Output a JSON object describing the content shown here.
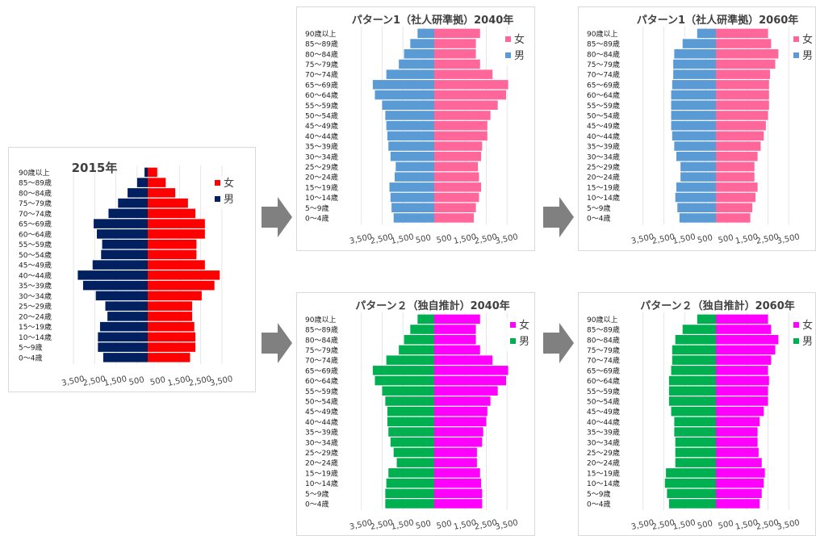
{
  "age_labels": [
    "0〜4歳",
    "5〜9歳",
    "10〜14歳",
    "15〜19歳",
    "20〜24歳",
    "25〜29歳",
    "30〜34歳",
    "35〜39歳",
    "40〜44歳",
    "45〜49歳",
    "50〜54歳",
    "55〜59歳",
    "60〜64歳",
    "65〜69歳",
    "70〜74歳",
    "75〜79歳",
    "80〜84歳",
    "85〜89歳",
    "90歳以上"
  ],
  "x_ticks": [
    "3,500",
    "2,500",
    "1,500",
    "500",
    "500",
    "1,500",
    "2,500",
    "3,500"
  ],
  "colors": {
    "female_red": "#ff0000",
    "male_navy": "#002060",
    "female_pink": "#ff6699",
    "male_blue": "#5b9bd5",
    "female_magenta": "#ff00ff",
    "male_green": "#00b050",
    "arrow": "#808080"
  },
  "chart_data": [
    {
      "type": "bar",
      "orientation": "horizontal-pyramid",
      "title": "2015年",
      "categories": [
        "0〜4歳",
        "5〜9歳",
        "10〜14歳",
        "15〜19歳",
        "20〜24歳",
        "25〜29歳",
        "30〜34歳",
        "35〜39歳",
        "40〜44歳",
        "45〜49歳",
        "50〜54歳",
        "55〜59歳",
        "60〜64歳",
        "65〜69歳",
        "70〜74歳",
        "75〜79歳",
        "80〜84歳",
        "85〜89歳",
        "90歳以上"
      ],
      "legend_position": "top-right",
      "xlim": [
        -4000,
        4000
      ],
      "series": [
        {
          "name": "女",
          "color": "#ff0000",
          "values": [
            2000,
            2250,
            2250,
            2200,
            2100,
            2100,
            2550,
            3150,
            3400,
            2700,
            2300,
            2300,
            2700,
            2700,
            2250,
            1900,
            1300,
            850,
            450
          ]
        },
        {
          "name": "男",
          "color": "#002060",
          "values": [
            2100,
            2350,
            2350,
            2250,
            1900,
            2000,
            2450,
            3050,
            3300,
            2600,
            2200,
            2150,
            2400,
            2550,
            1850,
            1400,
            950,
            500,
            150
          ]
        }
      ]
    },
    {
      "type": "bar",
      "orientation": "horizontal-pyramid",
      "title": "パターン1（社人研準拠）2040年",
      "categories": [
        "0〜4歳",
        "5〜9歳",
        "10〜14歳",
        "15〜19歳",
        "20〜24歳",
        "25〜29歳",
        "30〜34歳",
        "35〜39歳",
        "40〜44歳",
        "45〜49歳",
        "50〜54歳",
        "55〜59歳",
        "60〜64歳",
        "65〜69歳",
        "70〜74歳",
        "75〜79歳",
        "80〜84歳",
        "85〜89歳",
        "90歳以上"
      ],
      "legend_position": "top-right",
      "xlim": [
        -4000,
        4000
      ],
      "series": [
        {
          "name": "女",
          "color": "#ff6699",
          "values": [
            1900,
            2000,
            2150,
            2250,
            2150,
            2100,
            2250,
            2300,
            2550,
            2550,
            2700,
            3050,
            3450,
            3550,
            2800,
            2200,
            2000,
            2000,
            2200
          ]
        },
        {
          "name": "男",
          "color": "#5b9bd5",
          "values": [
            1950,
            2050,
            2100,
            2150,
            1900,
            1850,
            2100,
            2200,
            2250,
            2300,
            2350,
            2500,
            2850,
            2950,
            2300,
            1700,
            1450,
            1150,
            800
          ]
        }
      ]
    },
    {
      "type": "bar",
      "orientation": "horizontal-pyramid",
      "title": "パターン1（社人研準拠）2060年",
      "categories": [
        "0〜4歳",
        "5〜9歳",
        "10〜14歳",
        "15〜19歳",
        "20〜24歳",
        "25〜29歳",
        "30〜34歳",
        "35〜39歳",
        "40〜44歳",
        "45〜49歳",
        "50〜54歳",
        "55〜59歳",
        "60〜64歳",
        "65〜69歳",
        "70〜74歳",
        "75〜79歳",
        "80〜84歳",
        "85〜89歳",
        "90歳以上"
      ],
      "legend_position": "top-right",
      "xlim": [
        -4000,
        4000
      ],
      "series": [
        {
          "name": "女",
          "color": "#ff6699",
          "values": [
            1650,
            1750,
            1900,
            2000,
            1850,
            1850,
            2000,
            2150,
            2300,
            2400,
            2500,
            2550,
            2550,
            2550,
            2600,
            2850,
            3000,
            2650,
            2500
          ]
        },
        {
          "name": "男",
          "color": "#5b9bd5",
          "values": [
            1750,
            1850,
            1950,
            1900,
            1700,
            1700,
            1900,
            2000,
            2100,
            2150,
            2150,
            2150,
            2150,
            2100,
            2050,
            2050,
            2000,
            1600,
            900
          ]
        }
      ]
    },
    {
      "type": "bar",
      "orientation": "horizontal-pyramid",
      "title": "パターン２（独自推計）2040年",
      "categories": [
        "0〜4歳",
        "5〜9歳",
        "10〜14歳",
        "15〜19歳",
        "20〜24歳",
        "25〜29歳",
        "30〜34歳",
        "35〜39歳",
        "40〜44歳",
        "45〜49歳",
        "50〜54歳",
        "55〜59歳",
        "60〜64歳",
        "65〜69歳",
        "70〜74歳",
        "75〜79歳",
        "80〜84歳",
        "85〜89歳",
        "90歳以上"
      ],
      "legend_position": "top-right",
      "xlim": [
        -4000,
        4000
      ],
      "series": [
        {
          "name": "女",
          "color": "#ff00ff",
          "values": [
            2300,
            2300,
            2250,
            2200,
            2050,
            2050,
            2300,
            2350,
            2500,
            2550,
            2700,
            3050,
            3450,
            3550,
            2800,
            2200,
            2000,
            2000,
            2200
          ]
        },
        {
          "name": "男",
          "color": "#00b050",
          "values": [
            2350,
            2350,
            2300,
            2200,
            1800,
            1950,
            2100,
            2200,
            2250,
            2250,
            2350,
            2500,
            2850,
            2950,
            2300,
            1700,
            1450,
            1150,
            800
          ]
        }
      ]
    },
    {
      "type": "bar",
      "orientation": "horizontal-pyramid",
      "title": "パターン２（独自推計）2060年",
      "categories": [
        "0〜4歳",
        "5〜9歳",
        "10〜14歳",
        "15〜19歳",
        "20〜24歳",
        "25〜29歳",
        "30〜34歳",
        "35〜39歳",
        "40〜44歳",
        "45〜49歳",
        "50〜54歳",
        "55〜59歳",
        "60〜64歳",
        "65〜69歳",
        "70〜74歳",
        "75〜79歳",
        "80〜84歳",
        "85〜89歳",
        "90歳以上"
      ],
      "legend_position": "top-right",
      "xlim": [
        -4000,
        4000
      ],
      "series": [
        {
          "name": "女",
          "color": "#ff00ff",
          "values": [
            2100,
            2200,
            2300,
            2350,
            2200,
            2050,
            2000,
            2000,
            2100,
            2300,
            2500,
            2500,
            2550,
            2500,
            2650,
            2850,
            3000,
            2650,
            2500
          ]
        },
        {
          "name": "男",
          "color": "#00b050",
          "values": [
            2250,
            2350,
            2450,
            2400,
            1950,
            1950,
            1950,
            2000,
            2000,
            2150,
            2250,
            2250,
            2250,
            2150,
            2100,
            2100,
            1950,
            1600,
            900
          ]
        }
      ]
    }
  ]
}
